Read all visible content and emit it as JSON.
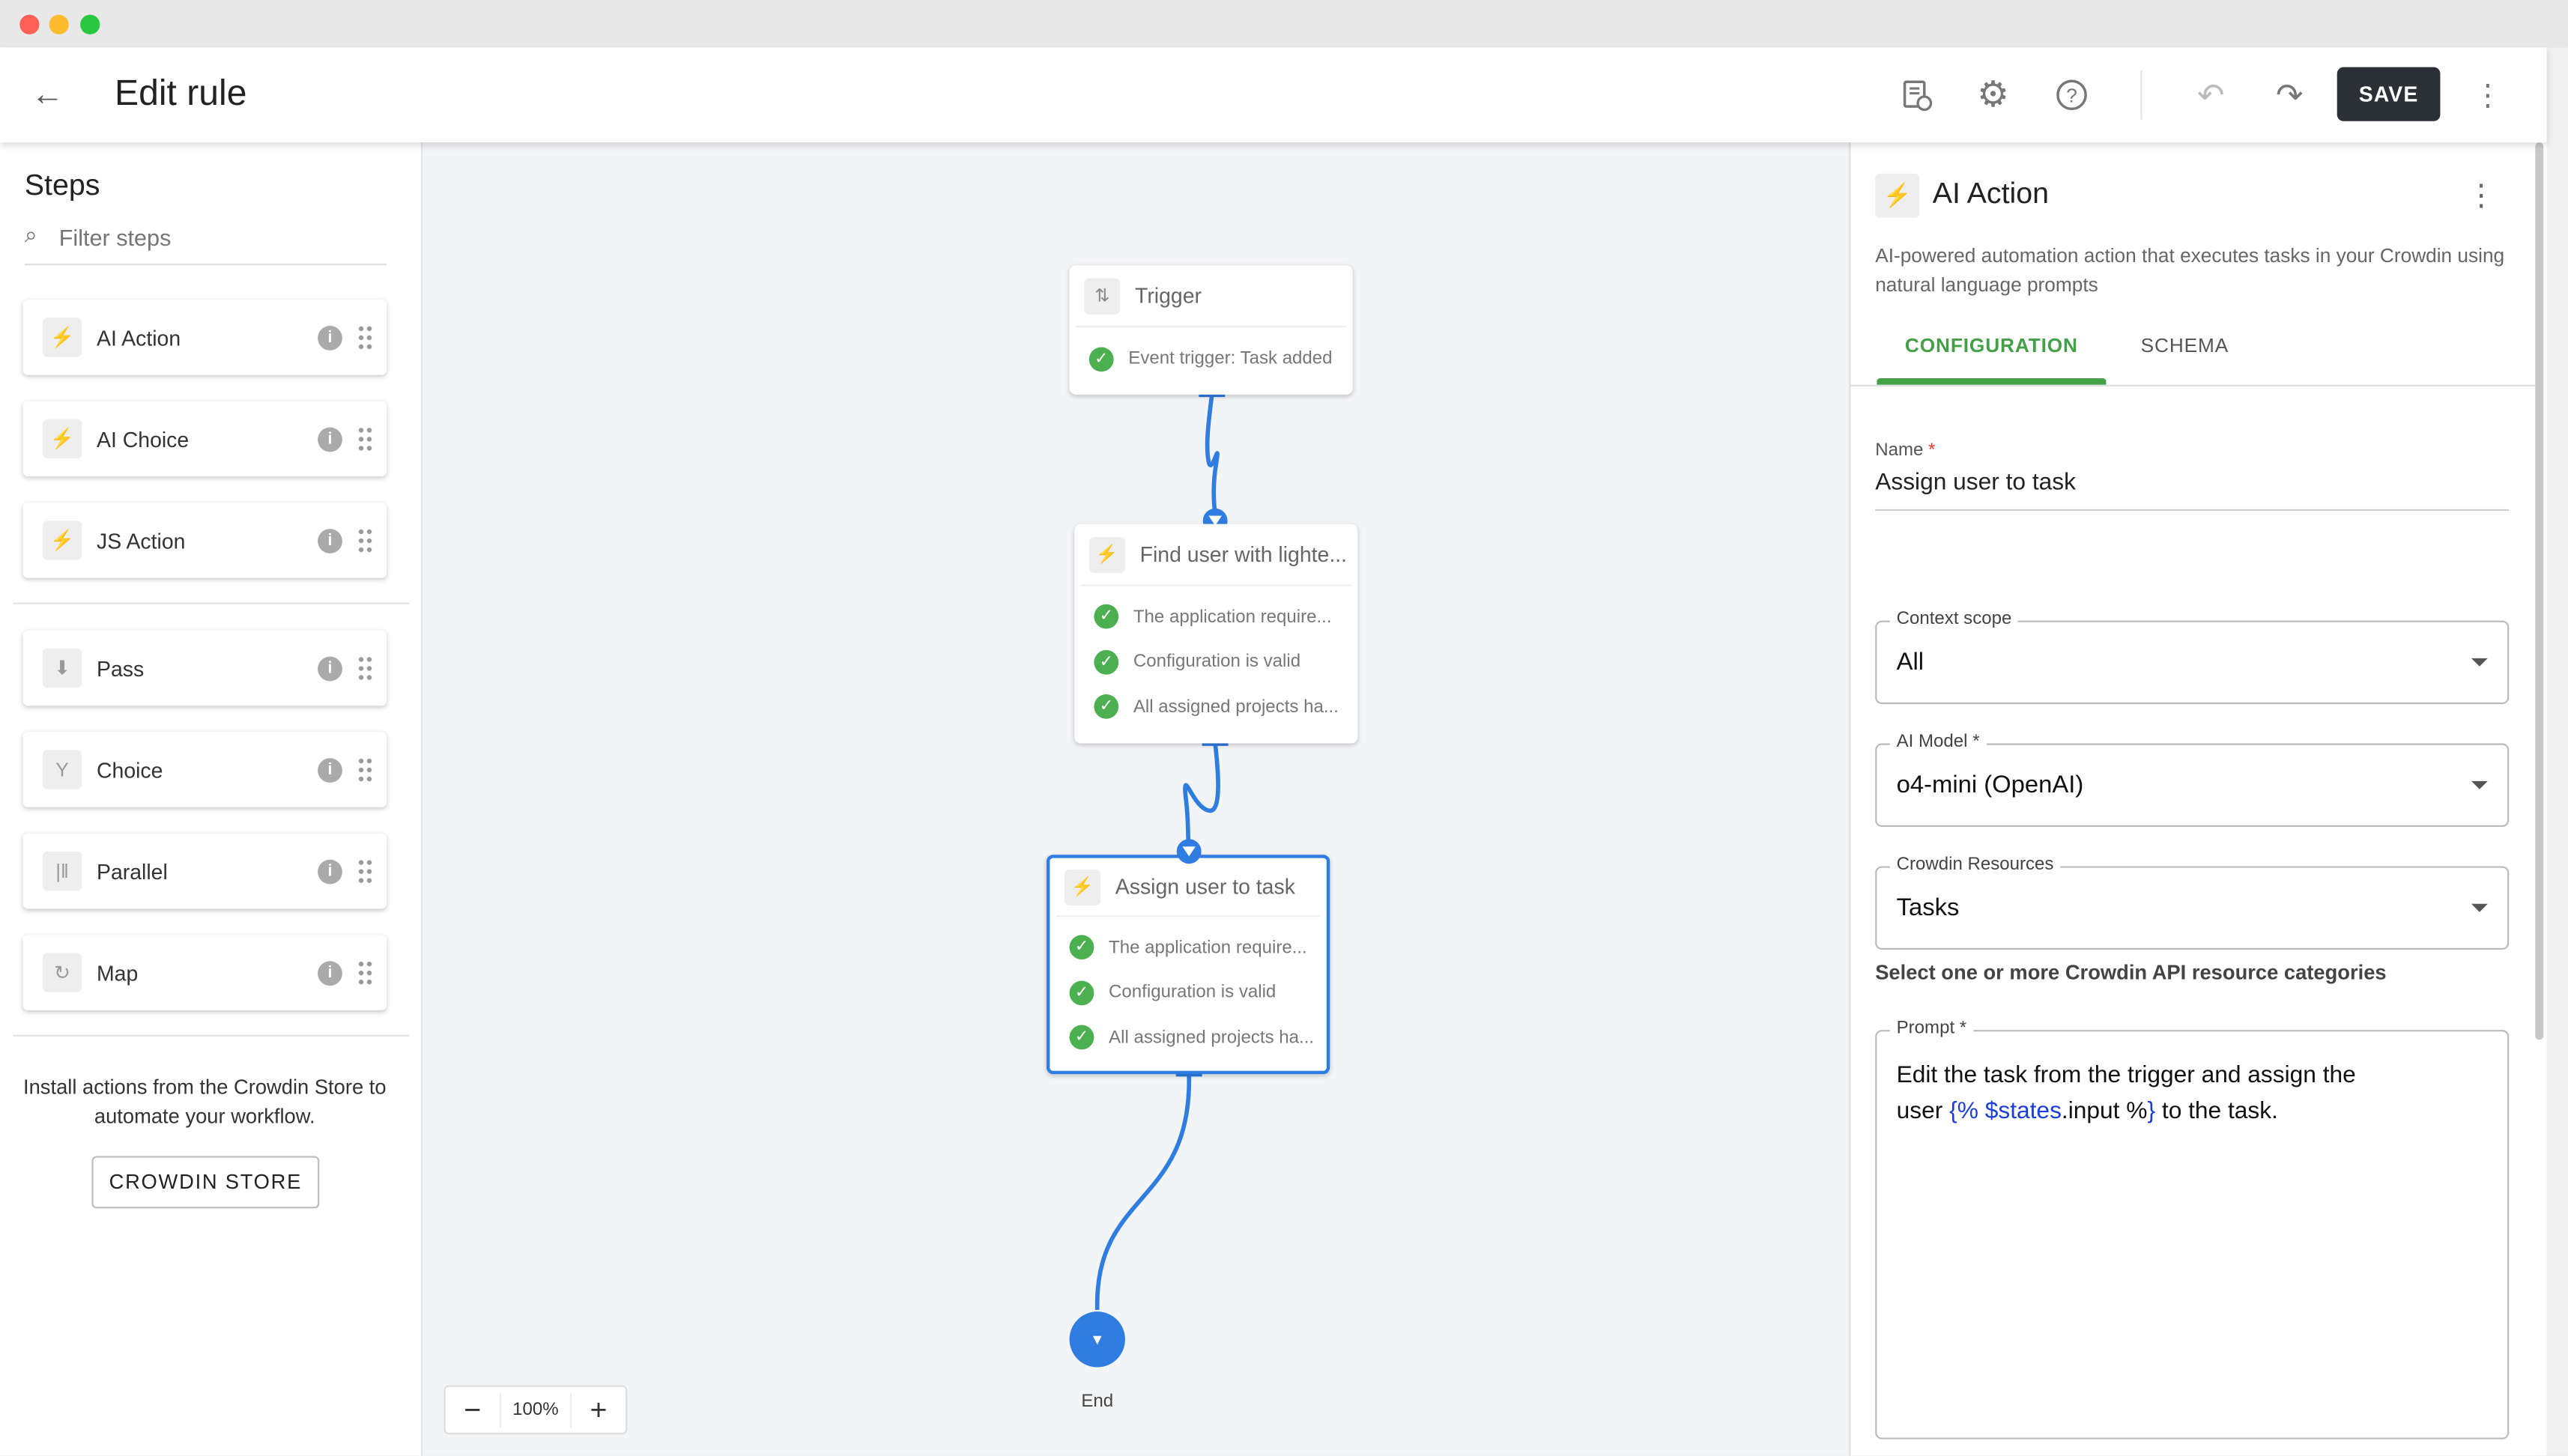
{
  "window": {
    "controls": [
      "close",
      "minimize",
      "maximize"
    ]
  },
  "header": {
    "title": "Edit rule",
    "save_label": "SAVE",
    "icons": [
      "arrow-left-icon",
      "document-clock-icon",
      "gear-icon",
      "help-circle-icon",
      "undo-icon",
      "redo-icon",
      "more-vert-icon"
    ]
  },
  "sidebar": {
    "title": "Steps",
    "filter_placeholder": "Filter steps",
    "items": [
      {
        "label": "AI Action",
        "icon": "bolt-icon"
      },
      {
        "label": "AI Choice",
        "icon": "bolt-icon"
      },
      {
        "label": "JS Action",
        "icon": "bolt-icon"
      },
      {
        "label": "Pass",
        "icon": "pass-icon"
      },
      {
        "label": "Choice",
        "icon": "fork-icon"
      },
      {
        "label": "Parallel",
        "icon": "parallel-icon"
      },
      {
        "label": "Map",
        "icon": "loop-icon"
      }
    ],
    "store_text": "Install actions from the Crowdin Store to automate your workflow.",
    "store_button": "CROWDIN STORE"
  },
  "canvas": {
    "nodes": [
      {
        "title": "Trigger",
        "icon": "swap-vert-icon",
        "checks": [
          "Event trigger: Task added"
        ]
      },
      {
        "title": "Find user with lighte...",
        "icon": "bolt-icon",
        "checks": [
          "The application require...",
          "Configuration is valid",
          "All assigned projects ha..."
        ]
      },
      {
        "title": "Assign user to task",
        "icon": "bolt-icon",
        "selected": true,
        "checks": [
          "The application require...",
          "Configuration is valid",
          "All assigned projects ha..."
        ]
      }
    ],
    "end_label": "End",
    "zoom": "100%",
    "accent": "#2f7de1"
  },
  "panel": {
    "title": "AI Action",
    "description": "AI-powered automation action that executes tasks in your Crowdin using natural language prompts",
    "tabs": [
      {
        "label": "CONFIGURATION",
        "active": true
      },
      {
        "label": "SCHEMA",
        "active": false
      }
    ],
    "name_label": "Name",
    "name_value": "Assign user to task",
    "context_label": "Context scope",
    "context_value": "All",
    "model_label": "AI Model *",
    "model_value": "o4-mini (OpenAI)",
    "resources_label": "Crowdin Resources",
    "resources_value": "Tasks",
    "resources_helper": "Select one or more Crowdin API resource categories",
    "prompt_label": "Prompt *",
    "prompt": {
      "line1": "Edit the task from the trigger and assign the",
      "p1": "user ",
      "v1": "{% ",
      "v2": "$states",
      "p2": ".input %",
      "v3": "}",
      "p3": " to the task."
    },
    "accent": "#43a047"
  }
}
